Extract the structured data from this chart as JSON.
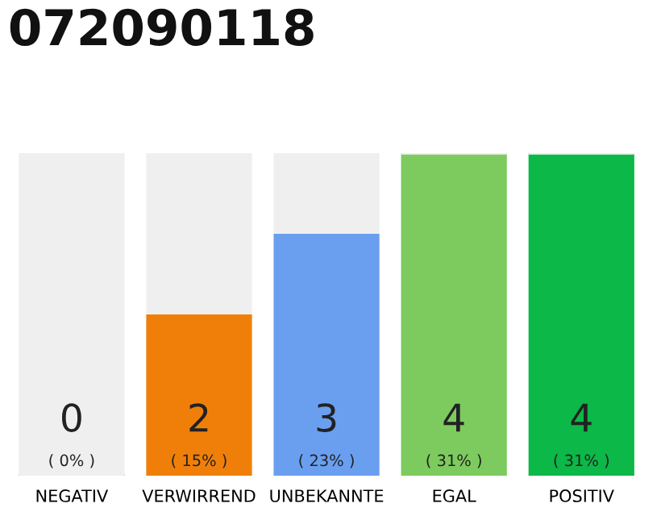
{
  "chart_data": {
    "type": "bar",
    "title": "072090118",
    "stacked": true,
    "grid": false,
    "legend": false,
    "categories": [
      "NEGATIV",
      "VERWIRREND",
      "UNBEKANNTE",
      "EGAL",
      "POSITIV"
    ],
    "ylim": [
      0,
      4
    ],
    "series": [
      {
        "colors": [
          "#555555",
          "#f07f0a",
          "#6a9ff0",
          "#7dcb5e",
          "#0cb847"
        ],
        "values": [
          0,
          2,
          3,
          4,
          4
        ],
        "value_labels": [
          "0\n( 0% )",
          "2\n( 15% )",
          "3\n( 23% )",
          "4\n( 31% )",
          "4\n( 31% )"
        ]
      },
      {
        "color": "#efefef",
        "values": [
          4,
          2,
          1,
          0,
          0
        ]
      }
    ]
  }
}
